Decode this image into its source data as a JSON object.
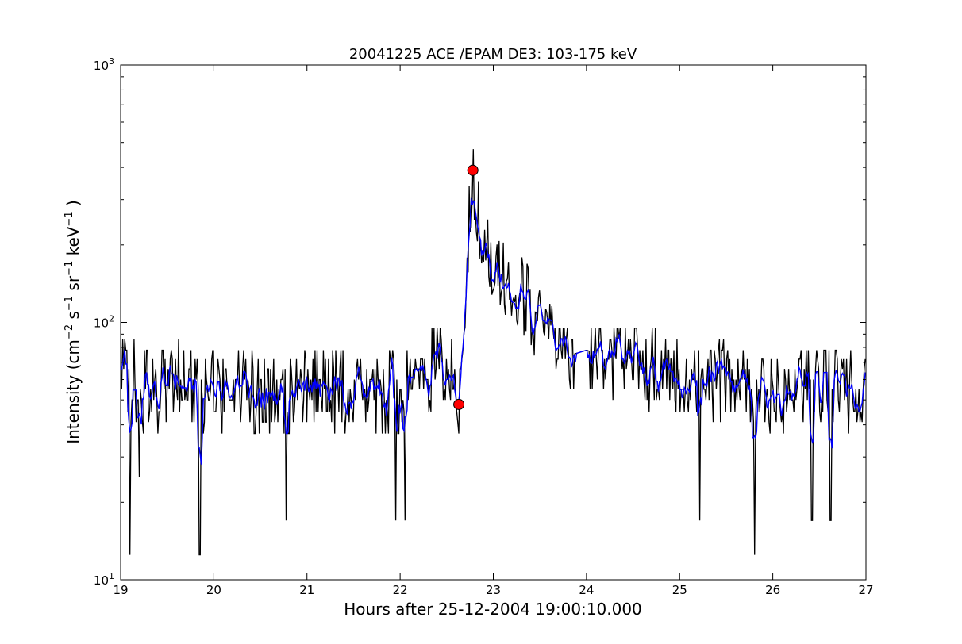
{
  "chart_data": {
    "type": "line",
    "title": "20041225 ACE /EPAM DE3: 103-175 keV",
    "xlabel": "Hours after 25-12-2004 19:00:10.000",
    "ylabel": {
      "parts": [
        {
          "text": "Intensity (cm",
          "sup": false
        },
        {
          "text": "−2",
          "sup": true
        },
        {
          "text": " s",
          "sup": false
        },
        {
          "text": "−1",
          "sup": true
        },
        {
          "text": " sr",
          "sup": false
        },
        {
          "text": "−1",
          "sup": true
        },
        {
          "text": " keV",
          "sup": false
        },
        {
          "text": "−1",
          "sup": true
        },
        {
          "text": " )",
          "sup": false
        }
      ]
    },
    "xlim": [
      19,
      27
    ],
    "ylim": [
      10,
      1000
    ],
    "yscale": "log",
    "xticks": [
      "19",
      "20",
      "21",
      "22",
      "23",
      "24",
      "25",
      "26",
      "27"
    ],
    "yticks": [
      {
        "value": 10,
        "base": "10",
        "exp": "1"
      },
      {
        "value": 100,
        "base": "10",
        "exp": "2"
      },
      {
        "value": 1000,
        "base": "10",
        "exp": "3"
      }
    ],
    "grid": false,
    "series_colors": {
      "raw": "#000000",
      "smoothed": "#0000ff",
      "markers": "#ff0000"
    },
    "series": [
      {
        "style": "raw",
        "description_key": "raw"
      },
      {
        "style": "smoothed",
        "description_key": "smoothed"
      }
    ],
    "profile": {
      "background_level": 55,
      "points": [
        [
          19.0,
          62
        ],
        [
          19.3,
          55
        ],
        [
          19.6,
          58
        ],
        [
          19.9,
          52
        ],
        [
          20.2,
          56
        ],
        [
          20.5,
          54
        ],
        [
          20.8,
          52
        ],
        [
          21.1,
          55
        ],
        [
          21.4,
          53
        ],
        [
          21.7,
          52
        ],
        [
          22.0,
          53
        ],
        [
          22.2,
          55
        ],
        [
          22.35,
          70
        ],
        [
          22.5,
          64
        ],
        [
          22.6,
          55
        ],
        [
          22.65,
          52
        ],
        [
          22.7,
          120
        ],
        [
          22.75,
          280
        ],
        [
          22.78,
          360
        ],
        [
          22.82,
          300
        ],
        [
          22.88,
          220
        ],
        [
          22.95,
          180
        ],
        [
          23.05,
          165
        ],
        [
          23.2,
          140
        ],
        [
          23.35,
          120
        ],
        [
          23.5,
          100
        ],
        [
          23.7,
          85
        ],
        [
          23.85,
          75
        ],
        [
          24.0,
          78
        ],
        [
          24.3,
          72
        ],
        [
          24.6,
          68
        ],
        [
          25.0,
          62
        ],
        [
          25.5,
          58
        ],
        [
          26.0,
          55
        ],
        [
          26.5,
          55
        ],
        [
          27.0,
          56
        ]
      ]
    },
    "special_drops": [
      [
        19.1,
        12.5
      ],
      [
        19.85,
        12.5
      ],
      [
        21.95,
        17
      ],
      [
        22.05,
        17
      ],
      [
        25.8,
        12.5
      ],
      [
        25.22,
        17
      ],
      [
        26.42,
        17
      ],
      [
        26.62,
        17
      ],
      [
        19.2,
        25
      ],
      [
        20.78,
        17
      ]
    ],
    "markers": [
      {
        "x": 22.78,
        "y": 390
      },
      {
        "x": 22.63,
        "y": 48
      }
    ]
  }
}
